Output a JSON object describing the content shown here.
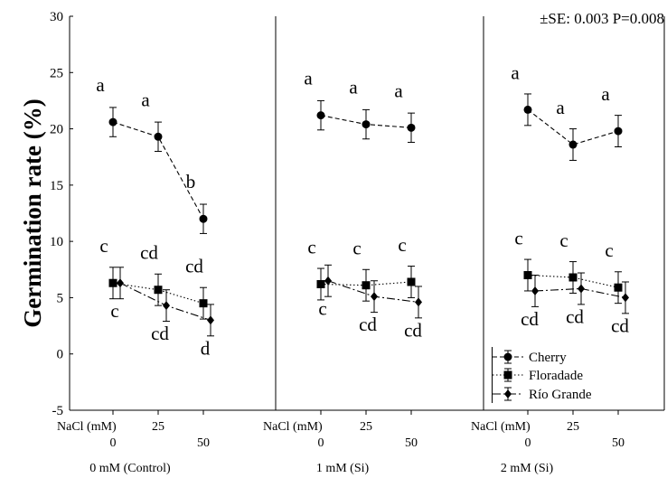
{
  "chart_data": {
    "type": "line",
    "ylabel": "Germination rate (%)",
    "ylim": [
      -5,
      30
    ],
    "yticks": [
      -5,
      0,
      5,
      10,
      15,
      20,
      25,
      30
    ],
    "x_axis_label": "NaCl (mM)",
    "categories": [
      "0",
      "25",
      "50"
    ],
    "annotation": "±SE: 0.003 P=0.008",
    "legend": {
      "position": "bottom-right",
      "entries": [
        "Cherry",
        "Floradade",
        "Río Grande"
      ]
    },
    "panels": [
      {
        "title": "0 mM (Control)",
        "series": [
          {
            "name": "Cherry",
            "values": [
              20.6,
              19.3,
              12.0
            ],
            "err": [
              1.3,
              1.3,
              1.3
            ],
            "labels": [
              "a",
              "a",
              "b"
            ]
          },
          {
            "name": "Floradade",
            "values": [
              6.3,
              5.7,
              4.5
            ],
            "err": [
              1.4,
              1.4,
              1.4
            ],
            "labels": [
              "c",
              "cd",
              "cd"
            ]
          },
          {
            "name": "Río Grande",
            "values": [
              6.3,
              4.3,
              3.0
            ],
            "err": [
              1.4,
              1.4,
              1.4
            ],
            "labels": [
              "c",
              "cd",
              "d"
            ]
          }
        ]
      },
      {
        "title": "1 mM (Si)",
        "series": [
          {
            "name": "Cherry",
            "values": [
              21.2,
              20.4,
              20.1
            ],
            "err": [
              1.3,
              1.3,
              1.3
            ],
            "labels": [
              "a",
              "a",
              "a"
            ]
          },
          {
            "name": "Floradade",
            "values": [
              6.2,
              6.1,
              6.4
            ],
            "err": [
              1.4,
              1.4,
              1.4
            ],
            "labels": [
              "c",
              "c",
              "c"
            ]
          },
          {
            "name": "Río Grande",
            "values": [
              6.5,
              5.1,
              4.6
            ],
            "err": [
              1.4,
              1.4,
              1.4
            ],
            "labels": [
              "c",
              "cd",
              "cd"
            ]
          }
        ]
      },
      {
        "title": "2 mM (Si)",
        "series": [
          {
            "name": "Cherry",
            "values": [
              21.7,
              18.6,
              19.8
            ],
            "err": [
              1.4,
              1.4,
              1.4
            ],
            "labels": [
              "a",
              "a",
              "a"
            ]
          },
          {
            "name": "Floradade",
            "values": [
              7.0,
              6.8,
              5.9
            ],
            "err": [
              1.4,
              1.4,
              1.4
            ],
            "labels": [
              "c",
              "c",
              "c"
            ]
          },
          {
            "name": "Río Grande",
            "values": [
              5.6,
              5.8,
              5.0
            ],
            "err": [
              1.4,
              1.4,
              1.4
            ],
            "labels": [
              "cd",
              "cd",
              "cd"
            ]
          }
        ]
      }
    ]
  }
}
